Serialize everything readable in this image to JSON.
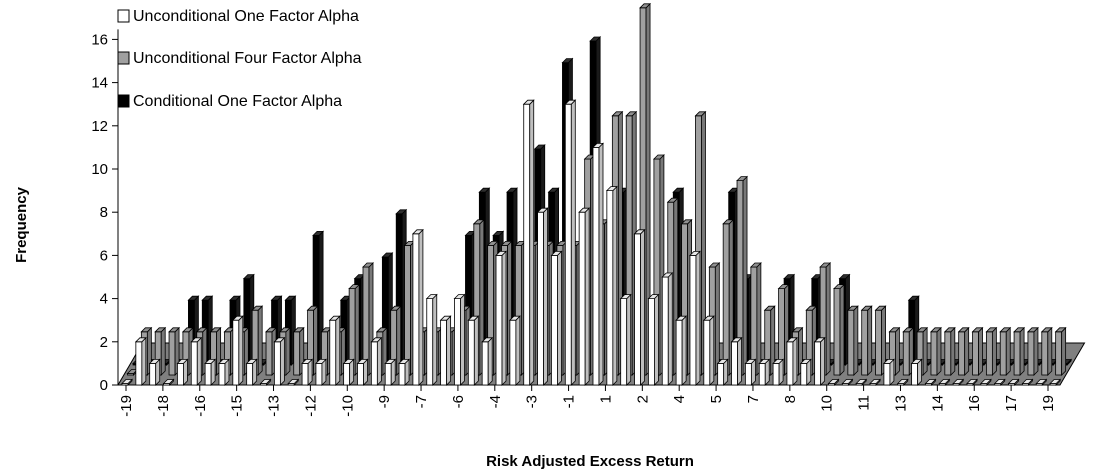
{
  "chart_data": {
    "type": "bar",
    "variant": "3d-depth-bars",
    "xlabel": "Risk Adjusted Excess Return",
    "ylabel": "Frequency",
    "ylim": [
      0,
      16
    ],
    "yticks": [
      0,
      2,
      4,
      6,
      8,
      10,
      12,
      14,
      16
    ],
    "x_tick_labels": [
      "-19",
      "-18",
      "-16",
      "-15",
      "-13",
      "-12",
      "-10",
      "-9",
      "-7",
      "-6",
      "-4",
      "-3",
      "-1",
      "1",
      "2",
      "4",
      "5",
      "7",
      "8",
      "10",
      "11",
      "13",
      "14",
      "16",
      "17",
      "19"
    ],
    "legend_placement": "top-left",
    "colors": {
      "one_factor": "#ffffff",
      "four_factor": "#a0a0a0",
      "conditional": "#000000",
      "floor": "#808080"
    },
    "series": [
      {
        "name": "Unconditional One Factor Alpha",
        "values": [
          0,
          2,
          1,
          0,
          1,
          2,
          1,
          1,
          3,
          1,
          0,
          2,
          0,
          1,
          1,
          3,
          1,
          1,
          2,
          1,
          1,
          7,
          4,
          3,
          4,
          3,
          2,
          6,
          3,
          13,
          8,
          6,
          13,
          8,
          11,
          9,
          4,
          7,
          4,
          5,
          3,
          6,
          3,
          1,
          2,
          1,
          1,
          1,
          2,
          1,
          2,
          0,
          0,
          0,
          0,
          1,
          0,
          1,
          0,
          0,
          0,
          0,
          0,
          0,
          0,
          0,
          0,
          0
        ]
      },
      {
        "name": "Unconditional Four Factor Alpha",
        "values": [
          0,
          2,
          2,
          2,
          2,
          2,
          2,
          2,
          2,
          3,
          2,
          2,
          2,
          3,
          2,
          2,
          4,
          5,
          2,
          3,
          6,
          2,
          2,
          2,
          3,
          7,
          6,
          6,
          6,
          6,
          6,
          6,
          6,
          10,
          7,
          12,
          12,
          17,
          10,
          8,
          7,
          12,
          5,
          7,
          9,
          5,
          3,
          4,
          2,
          3,
          5,
          4,
          3,
          3,
          3,
          2,
          2,
          2,
          2,
          2,
          2,
          2,
          2,
          2,
          2,
          2,
          2,
          2
        ]
      },
      {
        "name": "Conditional One Factor Alpha",
        "values": [
          0,
          0,
          0,
          0,
          3,
          3,
          0,
          3,
          4,
          0,
          3,
          3,
          0,
          6,
          0,
          3,
          4,
          0,
          5,
          7,
          0,
          0,
          0,
          0,
          6,
          8,
          6,
          8,
          0,
          10,
          8,
          14,
          0,
          15,
          0,
          8,
          0,
          0,
          0,
          8,
          0,
          0,
          0,
          8,
          4,
          0,
          0,
          4,
          0,
          4,
          0,
          4,
          0,
          0,
          0,
          0,
          3,
          0,
          0,
          0,
          0,
          0,
          0,
          0,
          0,
          0,
          0,
          0
        ]
      }
    ]
  }
}
